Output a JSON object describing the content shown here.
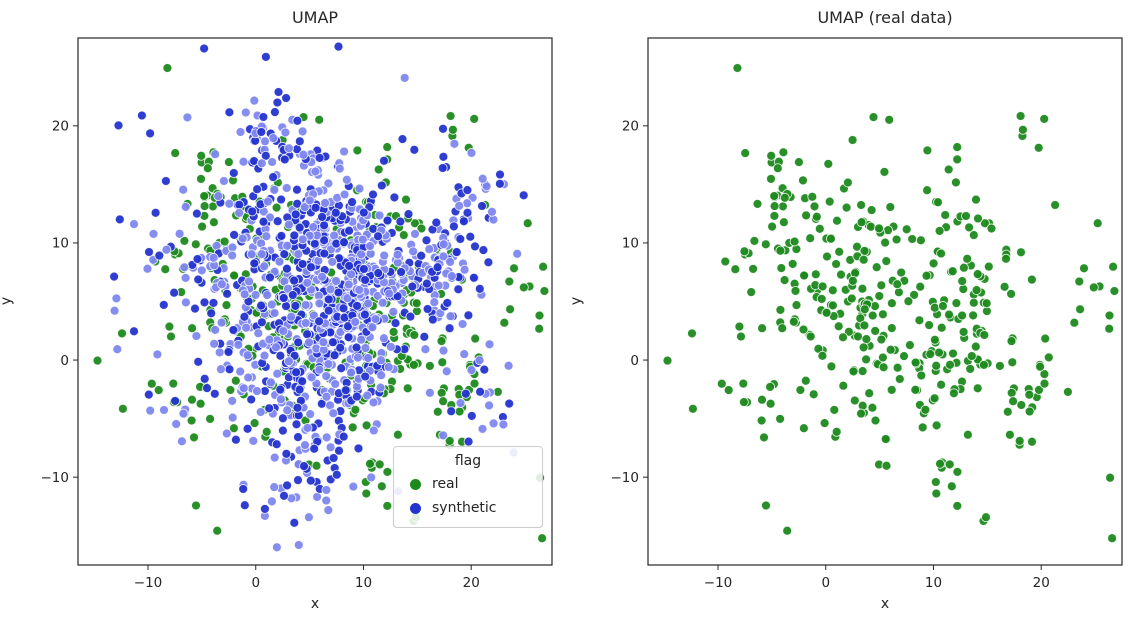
{
  "figure": {
    "background": "#ffffff"
  },
  "chart_data": [
    {
      "type": "scatter",
      "title": "UMAP",
      "xlabel": "x",
      "ylabel": "y",
      "xlim": [
        -16.5,
        27.5
      ],
      "ylim": [
        -17.5,
        27.5
      ],
      "xticks": [
        -10,
        0,
        10,
        20
      ],
      "yticks": [
        -10,
        0,
        10,
        20
      ],
      "grid": false,
      "legend": {
        "title": "flag",
        "position": "lower right",
        "entries": [
          {
            "label": "real",
            "color": "#1e8a1e"
          },
          {
            "label": "synthetic",
            "color": "#2433cf"
          }
        ]
      },
      "series": [
        {
          "name": "real",
          "color": "#1e8a1e",
          "edge_color": "#ffffff",
          "marker_size": 9,
          "n": 400,
          "seed": 7,
          "center": [
            5.5,
            5
          ],
          "cluster_count": 55,
          "cluster_spread": 8.5,
          "point_jitter": 1.4,
          "background_fraction": 0.25,
          "background_spread": 11
        },
        {
          "name": "synthetic",
          "color": "#2433cf",
          "alt_color": "#7f87ef",
          "alt_fraction": 0.52,
          "edge_color": "#ffffff",
          "marker_size": 9,
          "n": 1150,
          "seed": 13,
          "center": [
            5,
            5.5
          ],
          "cluster_count": 60,
          "cluster_spread": 7.5,
          "point_jitter": 1.6,
          "background_fraction": 0.2,
          "background_spread": 10
        }
      ]
    },
    {
      "type": "scatter",
      "title": "UMAP (real data)",
      "xlabel": "x",
      "ylabel": "y",
      "xlim": [
        -16.5,
        27.5
      ],
      "ylim": [
        -17.5,
        27.5
      ],
      "xticks": [
        -10,
        0,
        10,
        20
      ],
      "yticks": [
        -10,
        0,
        10,
        20
      ],
      "grid": false,
      "series": [
        {
          "name": "real",
          "color": "#1e8a1e",
          "edge_color": "#ffffff",
          "marker_size": 9,
          "n": 400,
          "seed": 7,
          "center": [
            5.5,
            5
          ],
          "cluster_count": 55,
          "cluster_spread": 8.5,
          "point_jitter": 1.4,
          "background_fraction": 0.25,
          "background_spread": 11
        }
      ]
    }
  ]
}
